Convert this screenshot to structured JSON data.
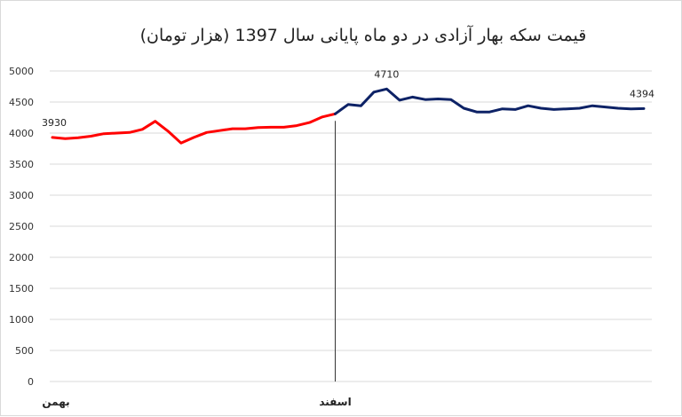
{
  "chart_data": {
    "type": "line",
    "title": "قیمت سکه بهار آزادی در دو ماه پایانی سال 1397 (هزار تومان)",
    "xlabel": "",
    "ylabel": "",
    "ylim": [
      0,
      5000
    ],
    "yticks": [
      0,
      500,
      1000,
      1500,
      2000,
      2500,
      3000,
      3500,
      4000,
      4500,
      5000
    ],
    "grid": true,
    "legend": "none",
    "x_category_labels": [
      {
        "index": 0,
        "label": "بهمن"
      },
      {
        "index": 22,
        "label": "اسفند"
      }
    ],
    "divider_index": 22,
    "series": [
      {
        "color": "#ff0000",
        "start_index": 0,
        "values": [
          3930,
          3910,
          3925,
          3950,
          3990,
          4000,
          4010,
          4060,
          4190,
          4030,
          3840,
          3930,
          4010,
          4040,
          4070,
          4070,
          4090,
          4095,
          4095,
          4120,
          4170,
          4260,
          4310
        ]
      },
      {
        "color": "#0d2266",
        "start_index": 22,
        "values": [
          4310,
          4460,
          4440,
          4660,
          4710,
          4530,
          4580,
          4540,
          4550,
          4540,
          4400,
          4340,
          4340,
          4390,
          4380,
          4440,
          4400,
          4380,
          4390,
          4400,
          4440,
          4420,
          4400,
          4390,
          4394
        ]
      }
    ],
    "data_labels": [
      {
        "series": 0,
        "index": 0,
        "text": "3930"
      },
      {
        "series": 1,
        "index": 4,
        "text": "4710"
      },
      {
        "series": 1,
        "index": 24,
        "text": "4394"
      }
    ]
  }
}
